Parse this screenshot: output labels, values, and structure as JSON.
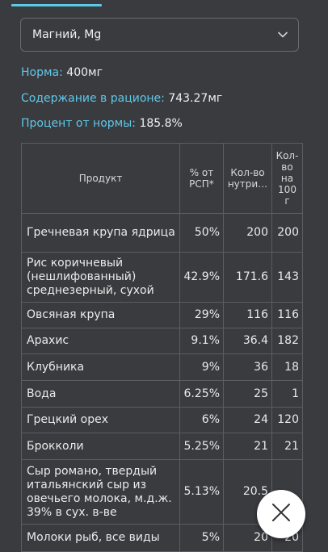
{
  "nutrient_select": {
    "value": "Магний, Mg"
  },
  "summary": {
    "norm_label": "Норма:",
    "norm_value": "400мг",
    "content_label": "Содержание в рационе:",
    "content_value": "743.27мг",
    "percent_label": "Процент от нормы:",
    "percent_value": "185.8%"
  },
  "table": {
    "headers": {
      "product": "Продукт",
      "percent": "% от РСП*",
      "amount": "Кол-во нутри…",
      "per100": "Кол-во на 100 г"
    },
    "rows": [
      {
        "name": "Гречневая крупа ядрица",
        "percent": "50%",
        "amount": "200",
        "per100": "200"
      },
      {
        "name": "Рис коричневый (нешлифованный) среднезерный, сухой",
        "percent": "42.9%",
        "amount": "171.6",
        "per100": "143"
      },
      {
        "name": "Овсяная крупа",
        "percent": "29%",
        "amount": "116",
        "per100": "116"
      },
      {
        "name": "Арахис",
        "percent": "9.1%",
        "amount": "36.4",
        "per100": "182"
      },
      {
        "name": "Клубника",
        "percent": "9%",
        "amount": "36",
        "per100": "18"
      },
      {
        "name": "Вода",
        "percent": "6.25%",
        "amount": "25",
        "per100": "1"
      },
      {
        "name": "Грецкий орех",
        "percent": "6%",
        "amount": "24",
        "per100": "120"
      },
      {
        "name": "Брокколи",
        "percent": "5.25%",
        "amount": "21",
        "per100": "21"
      },
      {
        "name": "Сыр романо, твердый итальянский сыр из овечьего молока, м.д.ж. 39% в сух. в-ве",
        "percent": "5.13%",
        "amount": "20.5",
        "per100": ""
      },
      {
        "name": "Молоки рыб, все виды",
        "percent": "5%",
        "amount": "20",
        "per100": "20"
      }
    ]
  },
  "icons": {
    "select_arrow": "chevron-down-icon",
    "fab": "close-icon"
  },
  "colors": {
    "accent": "#5ec8e8",
    "background": "#3a3b3f"
  }
}
